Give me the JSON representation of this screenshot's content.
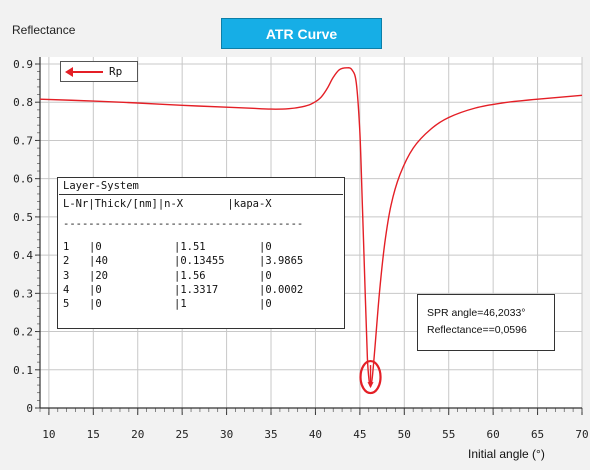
{
  "title": "ATR Curve",
  "ylabel": "Reflectance",
  "xlabel": "Initial angle  (°)",
  "legend": {
    "label": "Rp",
    "color": "#e41f26"
  },
  "chart_data": {
    "type": "line",
    "title": "ATR Curve",
    "xlabel": "Initial angle  (°)",
    "ylabel": "Reflectance",
    "xlim": [
      9,
      70
    ],
    "ylim": [
      0,
      0.9
    ],
    "xticks": [
      "10",
      "15",
      "20",
      "25",
      "30",
      "35",
      "40",
      "45",
      "50",
      "55",
      "60",
      "65",
      "70"
    ],
    "yticks": [
      "0",
      "0.1",
      "0.2",
      "0.3",
      "0.4",
      "0.5",
      "0.6",
      "0.7",
      "0.8",
      "0.9"
    ],
    "grid": true,
    "legend_position": "top-left",
    "series": [
      {
        "name": "Rp",
        "color": "#e41f26",
        "points": [
          [
            9,
            0.808
          ],
          [
            15,
            0.803
          ],
          [
            20,
            0.798
          ],
          [
            25,
            0.792
          ],
          [
            30,
            0.787
          ],
          [
            33,
            0.784
          ],
          [
            35,
            0.782
          ],
          [
            37,
            0.783
          ],
          [
            38.5,
            0.788
          ],
          [
            39.5,
            0.795
          ],
          [
            40.5,
            0.81
          ],
          [
            41.3,
            0.835
          ],
          [
            42,
            0.865
          ],
          [
            42.7,
            0.885
          ],
          [
            43.5,
            0.89
          ],
          [
            44.1,
            0.885
          ],
          [
            44.6,
            0.85
          ],
          [
            45.0,
            0.72
          ],
          [
            45.3,
            0.52
          ],
          [
            45.6,
            0.3
          ],
          [
            45.85,
            0.13
          ],
          [
            46.05,
            0.07
          ],
          [
            46.2,
            0.06
          ],
          [
            46.4,
            0.08
          ],
          [
            46.7,
            0.16
          ],
          [
            47.2,
            0.3
          ],
          [
            47.8,
            0.43
          ],
          [
            48.5,
            0.53
          ],
          [
            49.5,
            0.61
          ],
          [
            51,
            0.68
          ],
          [
            53,
            0.73
          ],
          [
            55,
            0.76
          ],
          [
            58,
            0.785
          ],
          [
            61,
            0.798
          ],
          [
            65,
            0.808
          ],
          [
            70,
            0.818
          ]
        ]
      }
    ],
    "annotations": [
      "SPR angle=46,2033°",
      "Reflectance==0,0596"
    ]
  },
  "layer_table": {
    "title": "Layer-System",
    "header": "L-Nr|Thick/[nm]|n-X       |kapa-X",
    "dash": "--------------------------------------",
    "rows": [
      {
        "nr": "1",
        "thick": "|0",
        "n": "|1.51",
        "k": "|0"
      },
      {
        "nr": "2",
        "thick": "|40",
        "n": "|0.13455",
        "k": "|3.9865"
      },
      {
        "nr": "3",
        "thick": "|20",
        "n": "|1.56",
        "k": "|0"
      },
      {
        "nr": "4",
        "thick": "|0",
        "n": "|1.3317",
        "k": "|0.0002"
      },
      {
        "nr": "5",
        "thick": "|0",
        "n": "|1",
        "k": "|0"
      }
    ]
  },
  "spr_info": {
    "angle_text": "SPR angle=46,2033°",
    "reflectance_text": "Reflectance==0,0596"
  }
}
